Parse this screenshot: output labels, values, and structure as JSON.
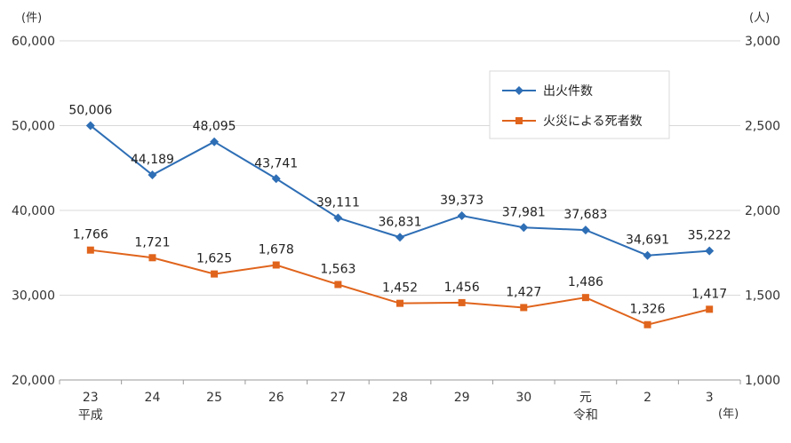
{
  "chart_data": {
    "type": "line",
    "categories": [
      "23",
      "24",
      "25",
      "26",
      "27",
      "28",
      "29",
      "30",
      "元",
      "2",
      "3"
    ],
    "category_sublabels": {
      "0": "平成",
      "8": "令和"
    },
    "x_unit": "(年)",
    "left_axis": {
      "unit": "(件)",
      "ylim": [
        20000,
        60000
      ],
      "ticks": [
        "20,000",
        "30,000",
        "40,000",
        "50,000",
        "60,000"
      ],
      "tick_values": [
        20000,
        30000,
        40000,
        50000,
        60000
      ]
    },
    "right_axis": {
      "unit": "(人)",
      "ylim": [
        1000,
        3000
      ],
      "ticks": [
        "1,000",
        "1,500",
        "2,000",
        "2,500",
        "3,000"
      ],
      "tick_values": [
        1000,
        1500,
        2000,
        2500,
        3000
      ]
    },
    "grid": true,
    "legend_position": "top-right",
    "series": [
      {
        "name": "出火件数",
        "axis": "left",
        "marker": "diamond",
        "color": "#2e6eb5",
        "values": [
          50006,
          44189,
          48095,
          43741,
          39111,
          36831,
          39373,
          37981,
          37683,
          34691,
          35222
        ],
        "labels": [
          "50,006",
          "44,189",
          "48,095",
          "43,741",
          "39,111",
          "36,831",
          "39,373",
          "37,981",
          "37,683",
          "34,691",
          "35,222"
        ]
      },
      {
        "name": "火災による死者数",
        "axis": "right",
        "marker": "square",
        "color": "#e0641c",
        "values": [
          1766,
          1721,
          1625,
          1678,
          1563,
          1452,
          1456,
          1427,
          1486,
          1326,
          1417
        ],
        "labels": [
          "1,766",
          "1,721",
          "1,625",
          "1,678",
          "1,563",
          "1,452",
          "1,456",
          "1,427",
          "1,486",
          "1,326",
          "1,417"
        ]
      }
    ]
  }
}
